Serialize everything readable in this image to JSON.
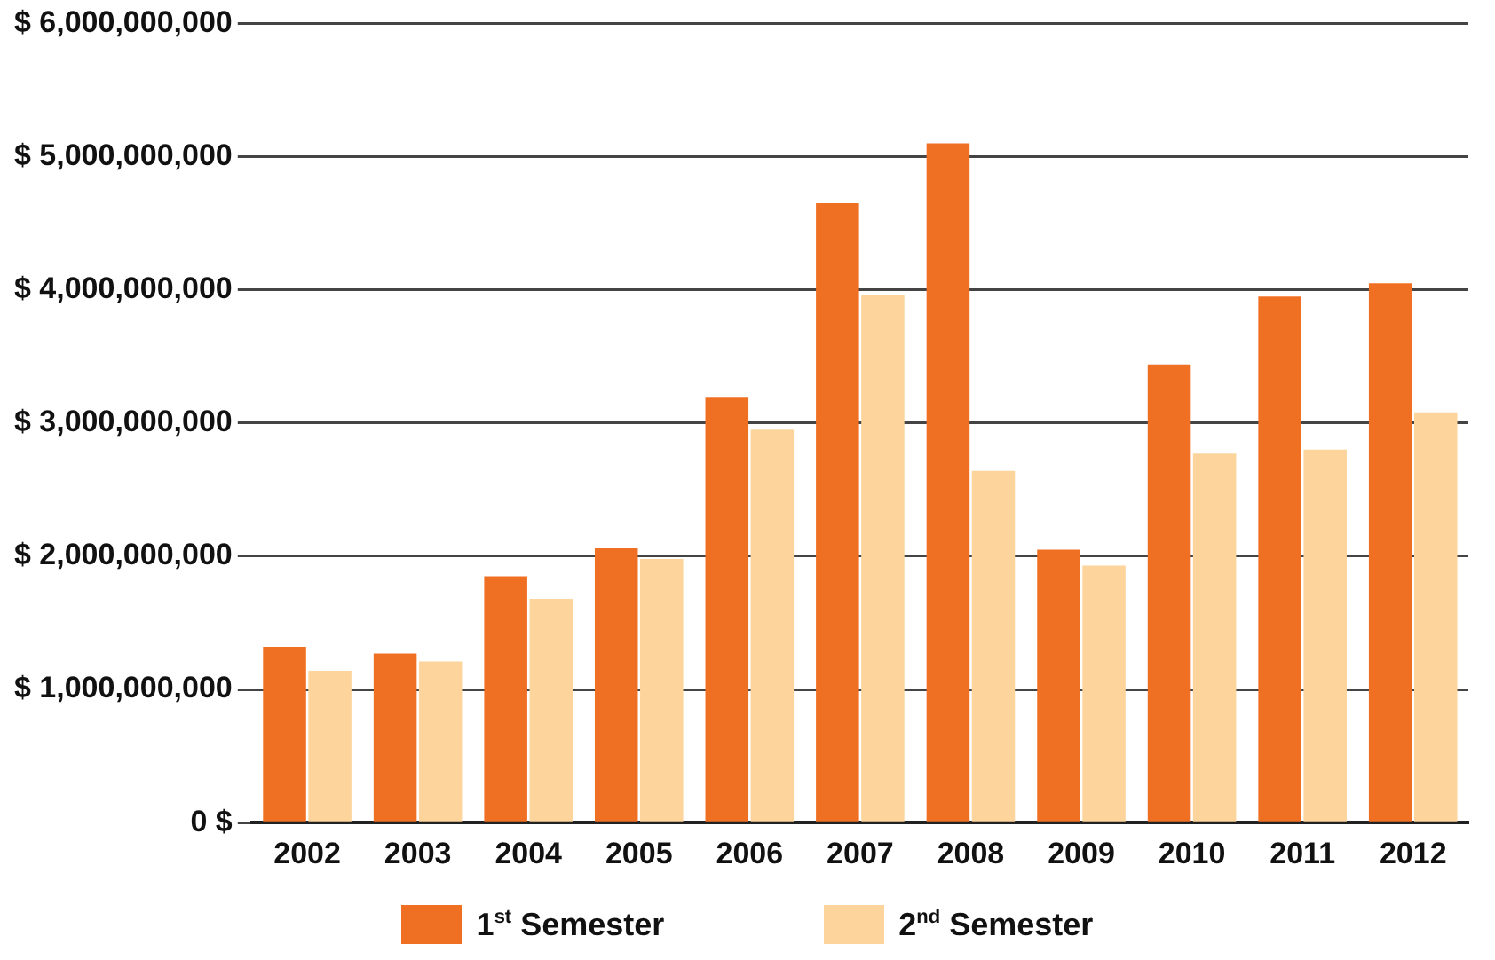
{
  "chart_data": {
    "type": "bar",
    "categories": [
      "2002",
      "2003",
      "2004",
      "2005",
      "2006",
      "2007",
      "2008",
      "2009",
      "2010",
      "2011",
      "2012"
    ],
    "series": [
      {
        "name": "1$^{st}$ Semester",
        "color": "#f07023",
        "values": [
          1320000000,
          1270000000,
          1850000000,
          2060000000,
          3190000000,
          4650000000,
          5100000000,
          2050000000,
          3440000000,
          3950000000,
          4050000000
        ]
      },
      {
        "name": "2$^{nd}$ Semester",
        "color": "#fcd49c",
        "values": [
          1140000000,
          1210000000,
          1680000000,
          1980000000,
          2950000000,
          3960000000,
          2640000000,
          1930000000,
          2770000000,
          2800000000,
          3080000000
        ]
      }
    ],
    "ylim": [
      0,
      6000000000
    ],
    "yticks": [
      {
        "value": 0,
        "label": "0 $"
      },
      {
        "value": 1000000000,
        "label": "$ 1,000,000,000"
      },
      {
        "value": 2000000000,
        "label": "$ 2,000,000,000"
      },
      {
        "value": 3000000000,
        "label": "$ 3,000,000,000"
      },
      {
        "value": 4000000000,
        "label": "$ 4,000,000,000"
      },
      {
        "value": 5000000000,
        "label": "$ 5,000,000,000"
      },
      {
        "value": 6000000000,
        "label": "$ 6,000,000,000"
      }
    ],
    "grid": "y",
    "legend": "bottom"
  }
}
